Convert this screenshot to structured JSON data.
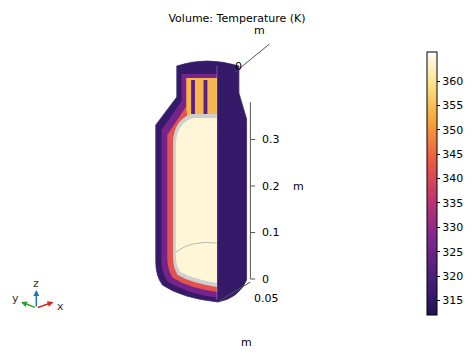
{
  "chart_data": {
    "type": "volume",
    "title": "Volume: Temperature (K)",
    "zlabel": "m",
    "zlim": [
      0,
      0.38
    ],
    "zticks": [
      0,
      0.1,
      0.2,
      0.3
    ],
    "xlabel": "m",
    "xlim": [
      0,
      0.05
    ],
    "xticks": [
      0.05
    ],
    "ylabel": "m",
    "ylim": [
      0,
      0.08
    ],
    "yticks": [
      0
    ],
    "colorbar": {
      "range": [
        312,
        366
      ],
      "ticks": [
        315,
        320,
        325,
        330,
        335,
        340,
        345,
        350,
        355,
        360
      ]
    },
    "region_temperatures": [
      316,
      326,
      342,
      354,
      322,
      364
    ],
    "triad": [
      "x",
      "y",
      "z"
    ]
  }
}
